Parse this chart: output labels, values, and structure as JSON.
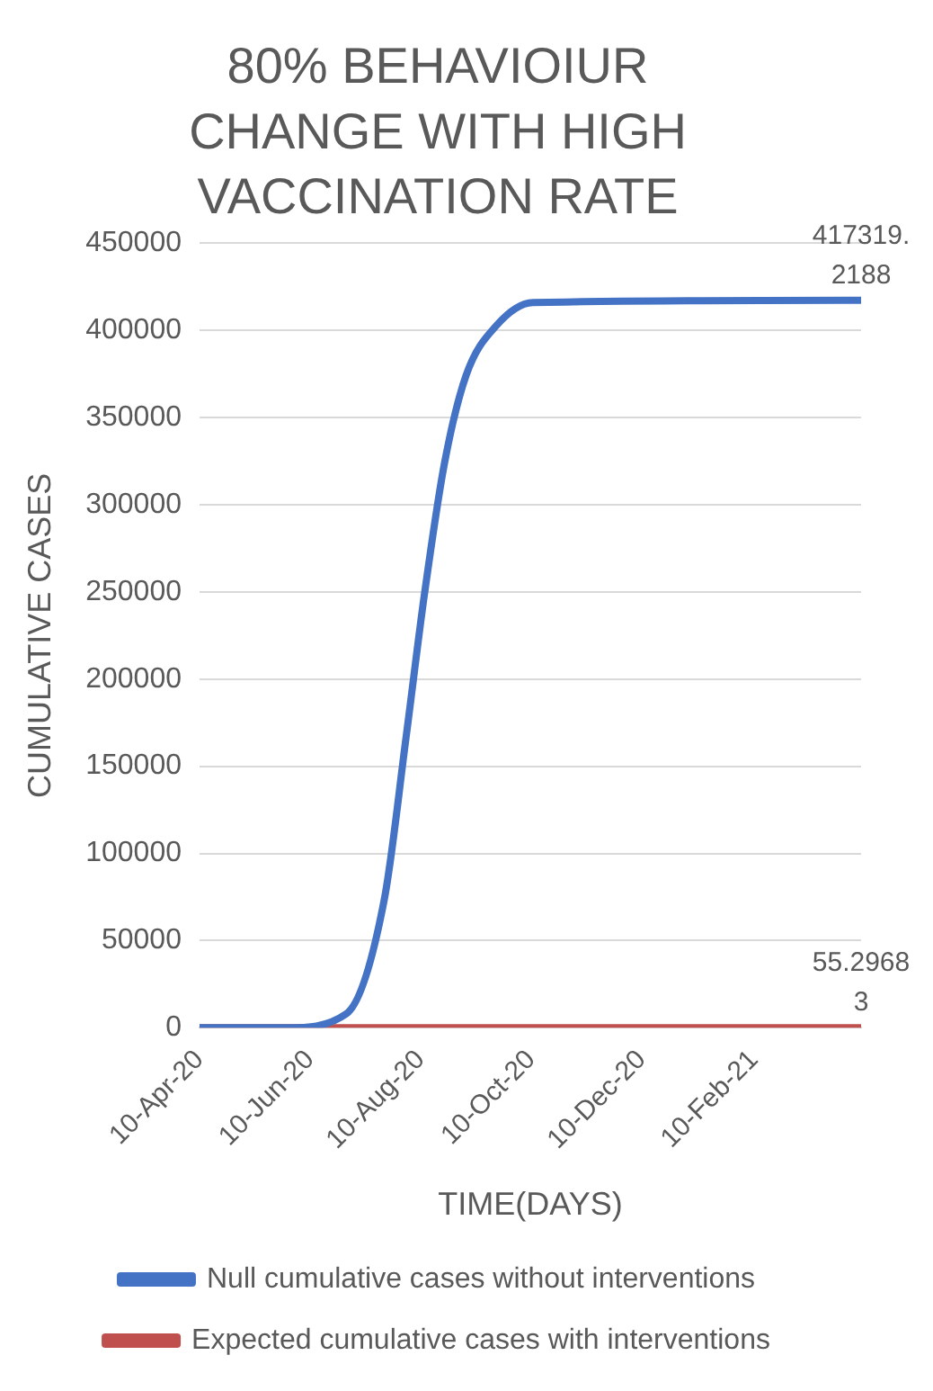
{
  "chart_data": {
    "type": "line",
    "title": "80% BEHAVIOIUR CHANGE WITH HIGH VACCINATION RATE",
    "xlabel": "TIME(DAYS)",
    "ylabel": "CUMULATIVE CASES",
    "xlim": [
      "2020-04-10",
      "2021-04-10"
    ],
    "xticks": [
      {
        "value": "2020-04-10",
        "label": "10-Apr-20"
      },
      {
        "value": "2020-06-10",
        "label": "10-Jun-20"
      },
      {
        "value": "2020-08-10",
        "label": "10-Aug-20"
      },
      {
        "value": "2020-10-10",
        "label": "10-Oct-20"
      },
      {
        "value": "2020-12-10",
        "label": "10-Dec-20"
      },
      {
        "value": "2021-02-10",
        "label": "10-Feb-21"
      }
    ],
    "ylim": [
      0,
      450000
    ],
    "yticks": [
      0,
      50000,
      100000,
      150000,
      200000,
      250000,
      300000,
      350000,
      400000,
      450000
    ],
    "grid": "y",
    "legend": "bottom",
    "marker": "none",
    "line_style": "solid",
    "series": [
      {
        "name": "Null cumulative cases without interventions",
        "color": "#4472c4",
        "x": [
          "2020-04-10",
          "2020-05-28",
          "2020-06-30",
          "2020-07-21",
          "2020-08-02",
          "2020-08-12",
          "2020-08-23",
          "2020-09-04",
          "2020-09-21",
          "2020-10-11",
          "2021-04-10"
        ],
        "values": [
          0,
          0,
          8000,
          74000,
          167000,
          248000,
          323000,
          374000,
          403000,
          416000,
          417319.2188
        ],
        "value_labels": [
          null,
          null,
          null,
          null,
          null,
          null,
          null,
          null,
          null,
          null,
          "417319.2188"
        ]
      },
      {
        "name": "Expected cumulative cases with interventions",
        "color": "#c0504d",
        "x": [
          "2020-04-10",
          "2020-10-10",
          "2021-04-10"
        ],
        "values": [
          0,
          0,
          55.29683
        ],
        "value_labels": [
          null,
          null,
          "55.29683"
        ]
      }
    ]
  }
}
